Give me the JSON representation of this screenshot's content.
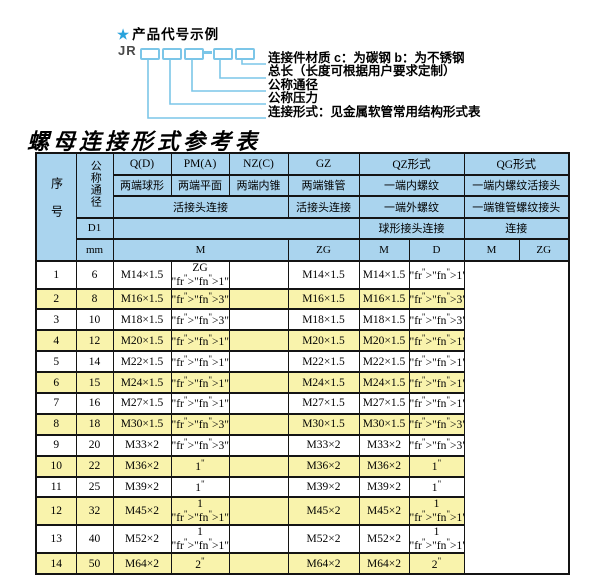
{
  "diagram": {
    "star": "★",
    "heading": "产品代号示例",
    "code_prefix": "JR",
    "labels": [
      "连接件材质  c：为碳钢  b：为不锈钢",
      "总长（长度可根据用户要求定制）",
      "公称通径",
      "公称压力",
      "连接形式：见金属软管常用结构形式表"
    ]
  },
  "table_title": "螺母连接形式参考表",
  "table": {
    "header": {
      "seq": "序号",
      "dn": "公称通径",
      "d1": "D1",
      "unit": "mm",
      "q_code": "Q(D)",
      "q_desc": "两端球形",
      "pm_code": "PM(A)",
      "pm_desc": "两端平面",
      "nz_code": "NZ(C)",
      "nz_desc": "两端内锥",
      "gz_code": "GZ",
      "gz_desc": "两端锥管",
      "qz_code": "QZ形式",
      "qz_desc1": "一端内螺纹",
      "qz_desc2": "一端外螺纹",
      "qz_desc3": "球形接头连接",
      "qg_code": "QG形式",
      "qg_desc1": "一端内螺纹活接头",
      "qg_desc2": "一端锥管螺纹接头",
      "qg_desc3": "连接",
      "union_joint": "活接头连接",
      "m": "M",
      "d": "D",
      "zg": "ZG"
    },
    "rows": [
      [
        "1",
        "6",
        "M14×1.5",
        "ZG 1/4\"",
        "",
        "M14×1.5",
        "M14×1.5",
        "1/4\""
      ],
      [
        "2",
        "8",
        "M16×1.5",
        "3/8\"",
        "",
        "M16×1.5",
        "M16×1.5",
        "3/8\""
      ],
      [
        "3",
        "10",
        "M18×1.5",
        "3/8\"",
        "",
        "M18×1.5",
        "M18×1.5",
        "3/8\""
      ],
      [
        "4",
        "12",
        "M20×1.5",
        "1/2\"",
        "",
        "M20×1.5",
        "M20×1.5",
        "1/2\""
      ],
      [
        "5",
        "14",
        "M22×1.5",
        "1/2\"",
        "",
        "M22×1.5",
        "M22×1.5",
        "1/2\""
      ],
      [
        "6",
        "15",
        "M24×1.5",
        "1/2\"",
        "",
        "M24×1.5",
        "M24×1.5",
        "1/2\""
      ],
      [
        "7",
        "16",
        "M27×1.5",
        "1/2\"",
        "",
        "M27×1.5",
        "M27×1.5",
        "1/2\""
      ],
      [
        "8",
        "18",
        "M30×1.5",
        "3/4\"",
        "",
        "M30×1.5",
        "M30×1.5",
        "3/4\""
      ],
      [
        "9",
        "20",
        "M33×2",
        "3/4\"",
        "",
        "M33×2",
        "M33×2",
        "3/4\""
      ],
      [
        "10",
        "22",
        "M36×2",
        "1\"",
        "",
        "M36×2",
        "M36×2",
        "1\""
      ],
      [
        "11",
        "25",
        "M39×2",
        "1\"",
        "",
        "M39×2",
        "M39×2",
        "1\""
      ],
      [
        "12",
        "32",
        "M45×2",
        "1 1/4\"",
        "",
        "M45×2",
        "M45×2",
        "1 1/4\""
      ],
      [
        "13",
        "40",
        "M52×2",
        "1 1/2\"",
        "",
        "M52×2",
        "M52×2",
        "1 1/2\""
      ],
      [
        "14",
        "50",
        "M64×2",
        "2\"",
        "",
        "M64×2",
        "M64×2",
        "2\""
      ]
    ]
  },
  "colors": {
    "header_bg": "#aad4ee",
    "row_alt_bg": "#f9f3ac",
    "diagram_line": "#7cc6e8",
    "star": "#29a3dc",
    "border": "#141414"
  }
}
